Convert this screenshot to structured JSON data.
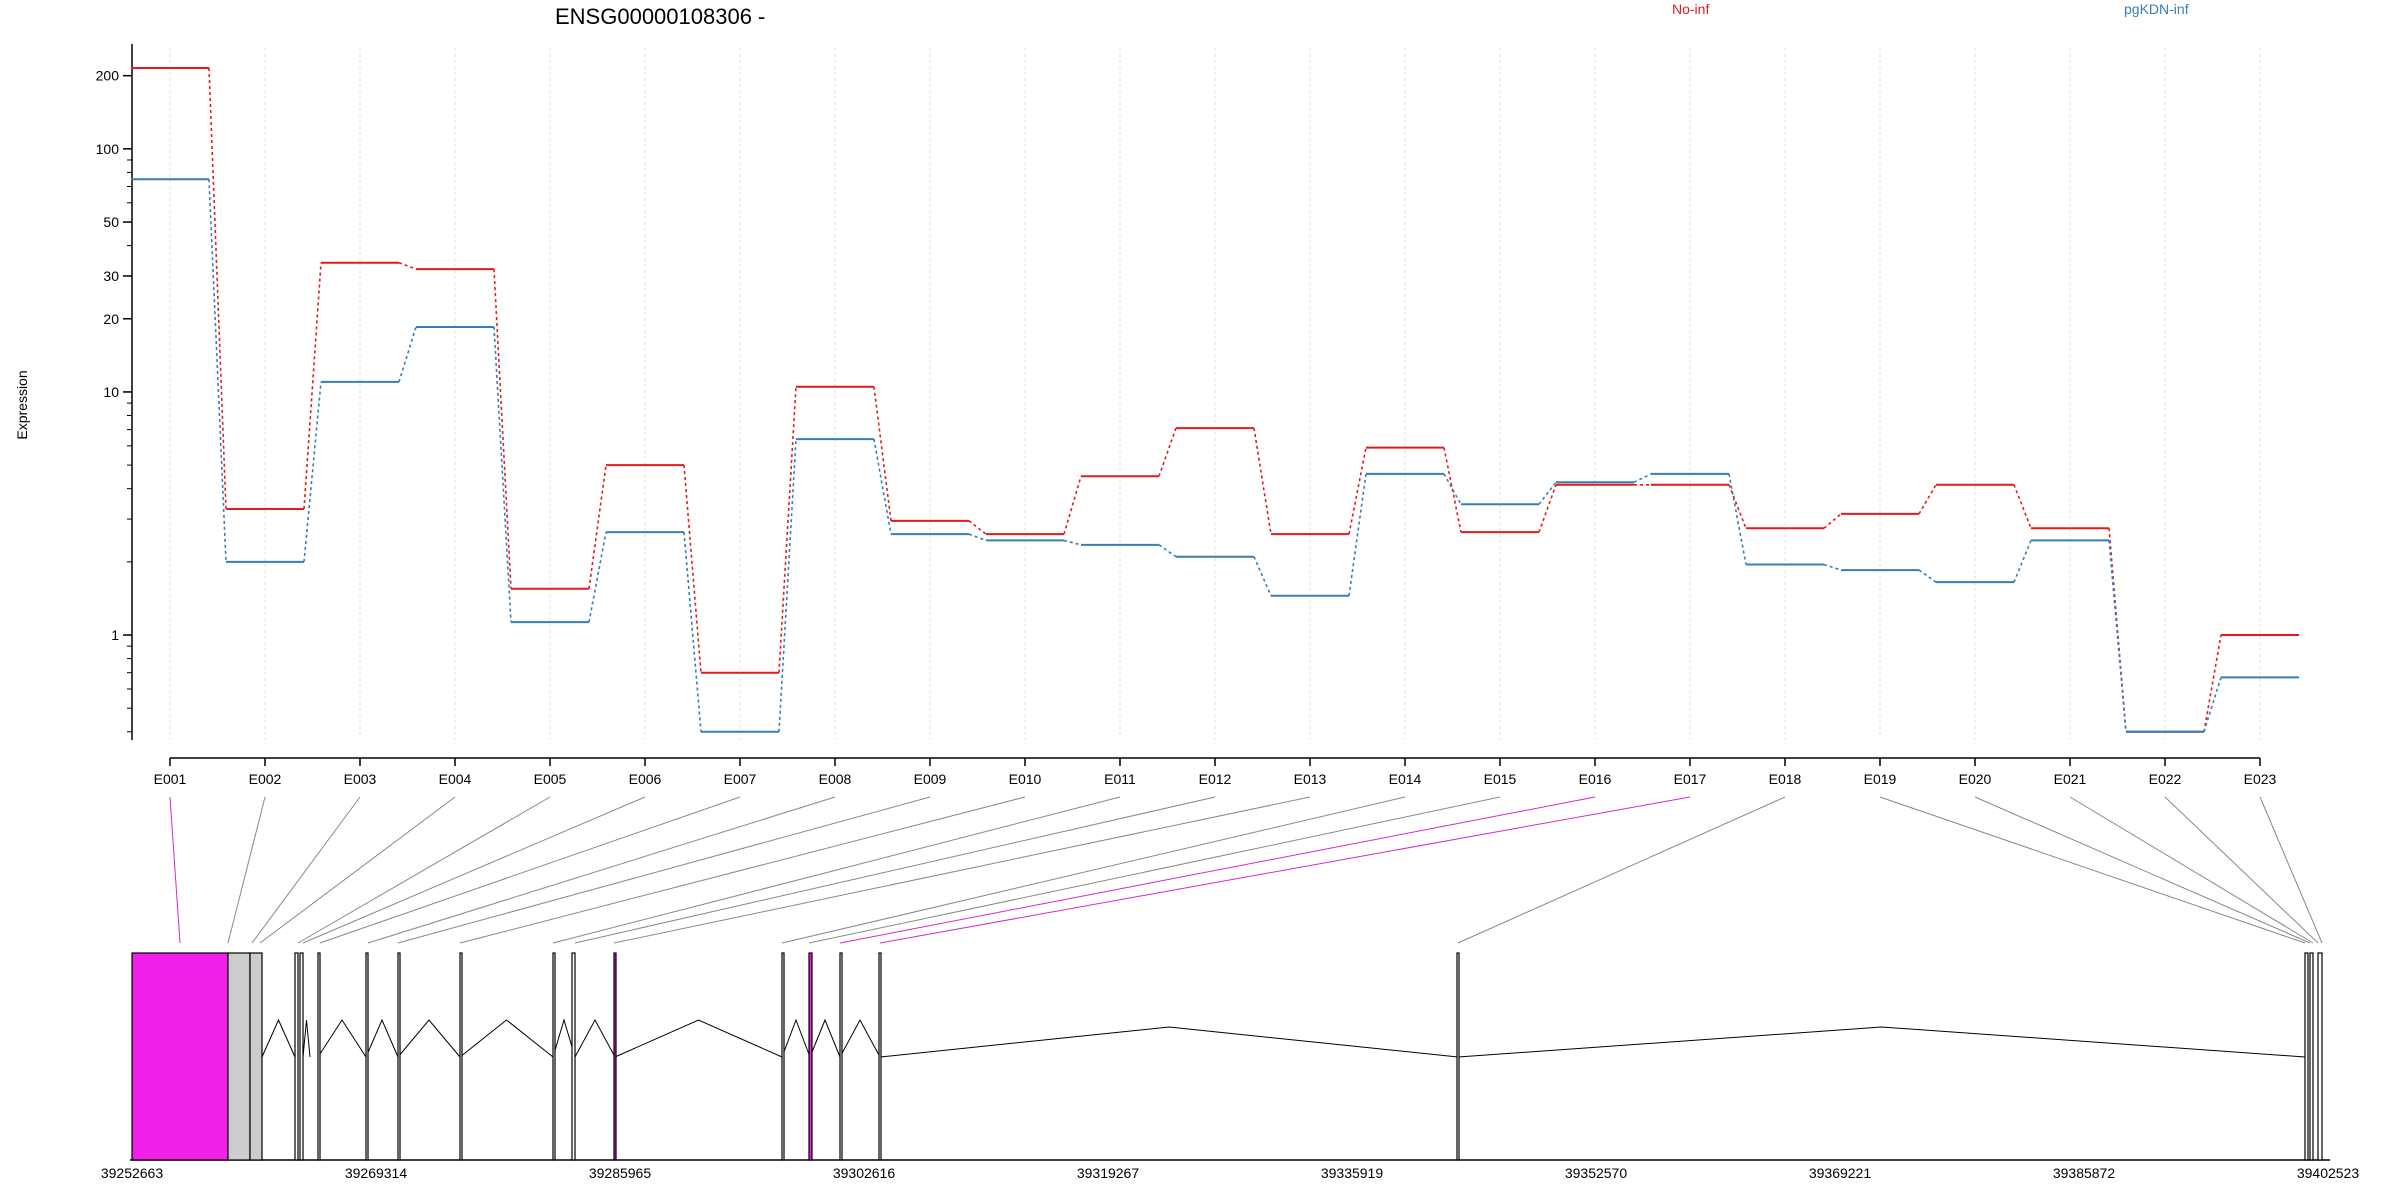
{
  "chart_data": {
    "type": "line",
    "title": "ENSG00000108306 -",
    "ylabel": "Expression",
    "xlabel": "",
    "yscale": "log",
    "ylim": [
      0.37,
      270
    ],
    "yticks": [
      1,
      10,
      20,
      30,
      50,
      100,
      200
    ],
    "legend_position": "top",
    "grid": "vertical-dashed",
    "categories": [
      "E001",
      "E002",
      "E003",
      "E004",
      "E005",
      "E006",
      "E007",
      "E008",
      "E009",
      "E010",
      "E011",
      "E012",
      "E013",
      "E014",
      "E015",
      "E016",
      "E017",
      "E018",
      "E019",
      "E020",
      "E021",
      "E022",
      "E023"
    ],
    "series": [
      {
        "name": "No-inf",
        "color": "#e41a1c",
        "values": [
          215,
          3.3,
          34,
          32,
          1.55,
          5.0,
          0.7,
          10.5,
          2.95,
          2.6,
          4.5,
          7.1,
          2.6,
          5.9,
          2.65,
          4.15,
          4.15,
          2.75,
          3.15,
          4.15,
          2.75,
          0.4,
          1.0
        ]
      },
      {
        "name": "pgKDN-inf",
        "color": "#377eb8",
        "values": [
          75,
          2.0,
          11,
          18.5,
          1.13,
          2.65,
          0.4,
          6.4,
          2.6,
          2.45,
          2.35,
          2.1,
          1.45,
          4.6,
          3.45,
          4.25,
          4.6,
          1.95,
          1.85,
          1.65,
          2.45,
          0.4,
          0.67
        ]
      }
    ]
  },
  "gene_model": {
    "genomic_ticks": [
      "39252663",
      "39269314",
      "39285965",
      "39302616",
      "39319267",
      "39335919",
      "39352570",
      "39369221",
      "39385872",
      "39402523"
    ],
    "highlight_color": "#f020e8",
    "intron_color": "#000000",
    "exon_fill": "#cccccc"
  }
}
